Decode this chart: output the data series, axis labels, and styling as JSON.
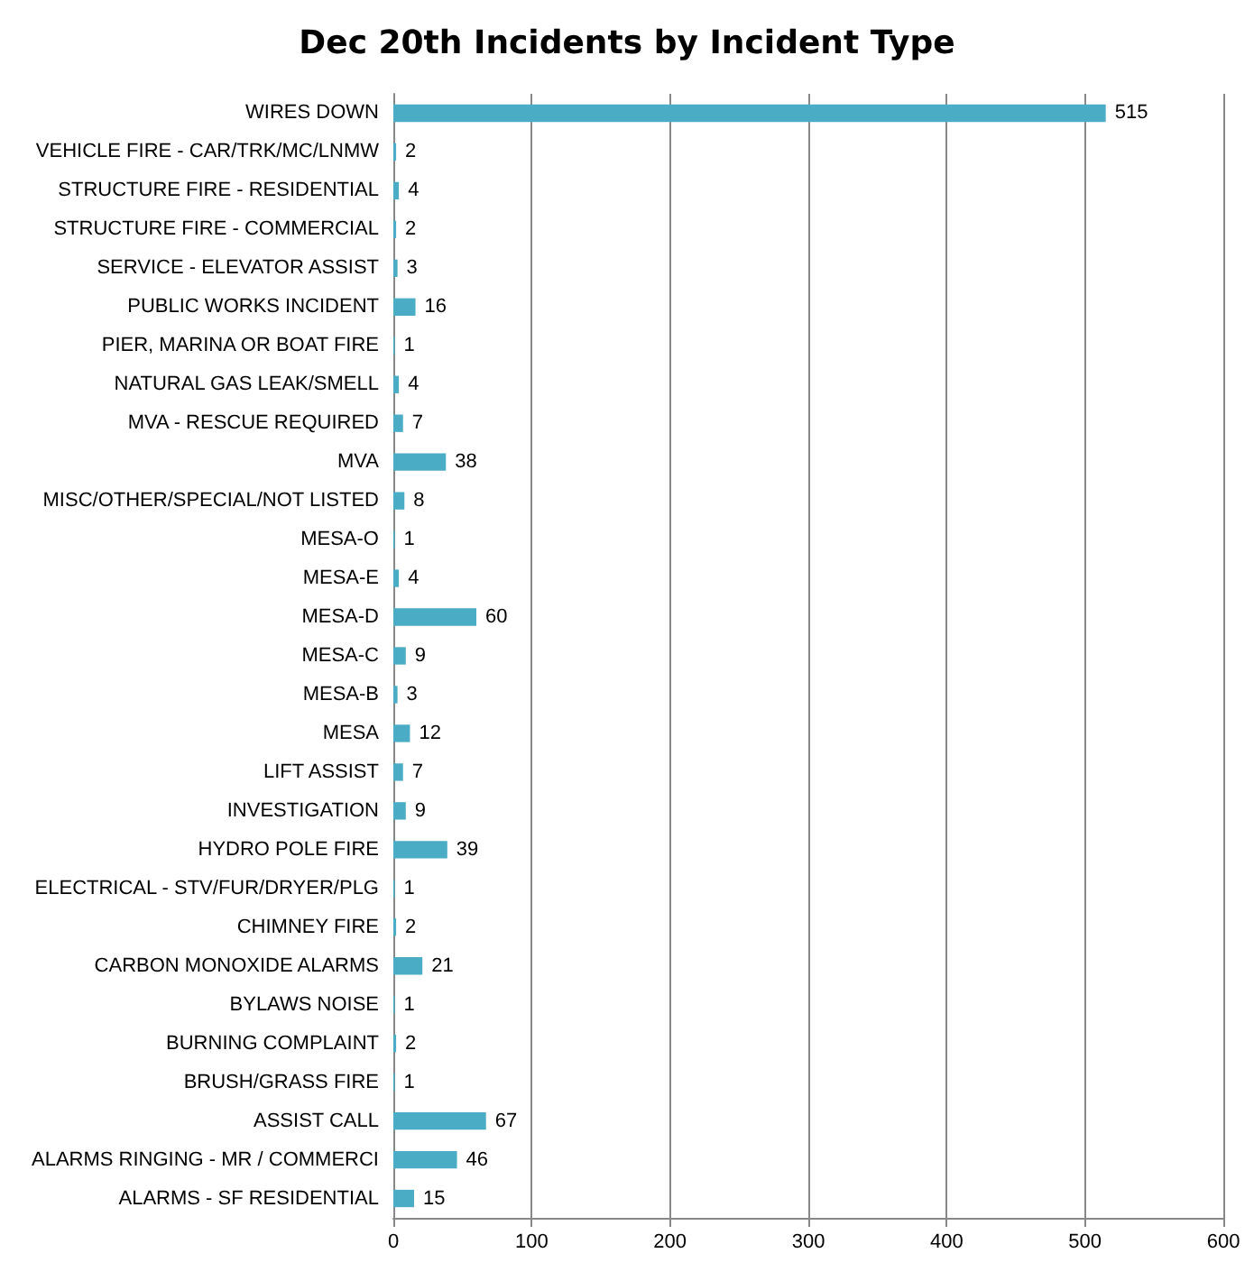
{
  "chart_data": {
    "type": "bar",
    "orientation": "horizontal",
    "title": "Dec 20th Incidents by Incident Type",
    "categories": [
      "WIRES DOWN",
      "VEHICLE FIRE - CAR/TRK/MC/LNMW",
      "STRUCTURE FIRE - RESIDENTIAL",
      "STRUCTURE FIRE - COMMERCIAL",
      "SERVICE - ELEVATOR ASSIST",
      "PUBLIC WORKS INCIDENT",
      "PIER, MARINA OR BOAT FIRE",
      "NATURAL GAS LEAK/SMELL",
      "MVA - RESCUE REQUIRED",
      "MVA",
      "MISC/OTHER/SPECIAL/NOT LISTED",
      "MESA-O",
      "MESA-E",
      "MESA-D",
      "MESA-C",
      "MESA-B",
      "MESA",
      "LIFT ASSIST",
      "INVESTIGATION",
      "HYDRO POLE FIRE",
      "ELECTRICAL - STV/FUR/DRYER/PLG",
      "CHIMNEY FIRE",
      "CARBON MONOXIDE ALARMS",
      "BYLAWS NOISE",
      "BURNING COMPLAINT",
      "BRUSH/GRASS FIRE",
      "ASSIST CALL",
      "ALARMS RINGING - MR / COMMERCI",
      "ALARMS - SF RESIDENTIAL"
    ],
    "values": [
      515,
      2,
      4,
      2,
      3,
      16,
      1,
      4,
      7,
      38,
      8,
      1,
      4,
      60,
      9,
      3,
      12,
      7,
      9,
      39,
      1,
      2,
      21,
      1,
      2,
      1,
      67,
      46,
      15
    ],
    "color": "#4bacc6",
    "xlim": [
      0,
      600
    ],
    "xticks": [
      0,
      100,
      200,
      300,
      400,
      500,
      600
    ],
    "grid": "x",
    "data_labels": true
  }
}
